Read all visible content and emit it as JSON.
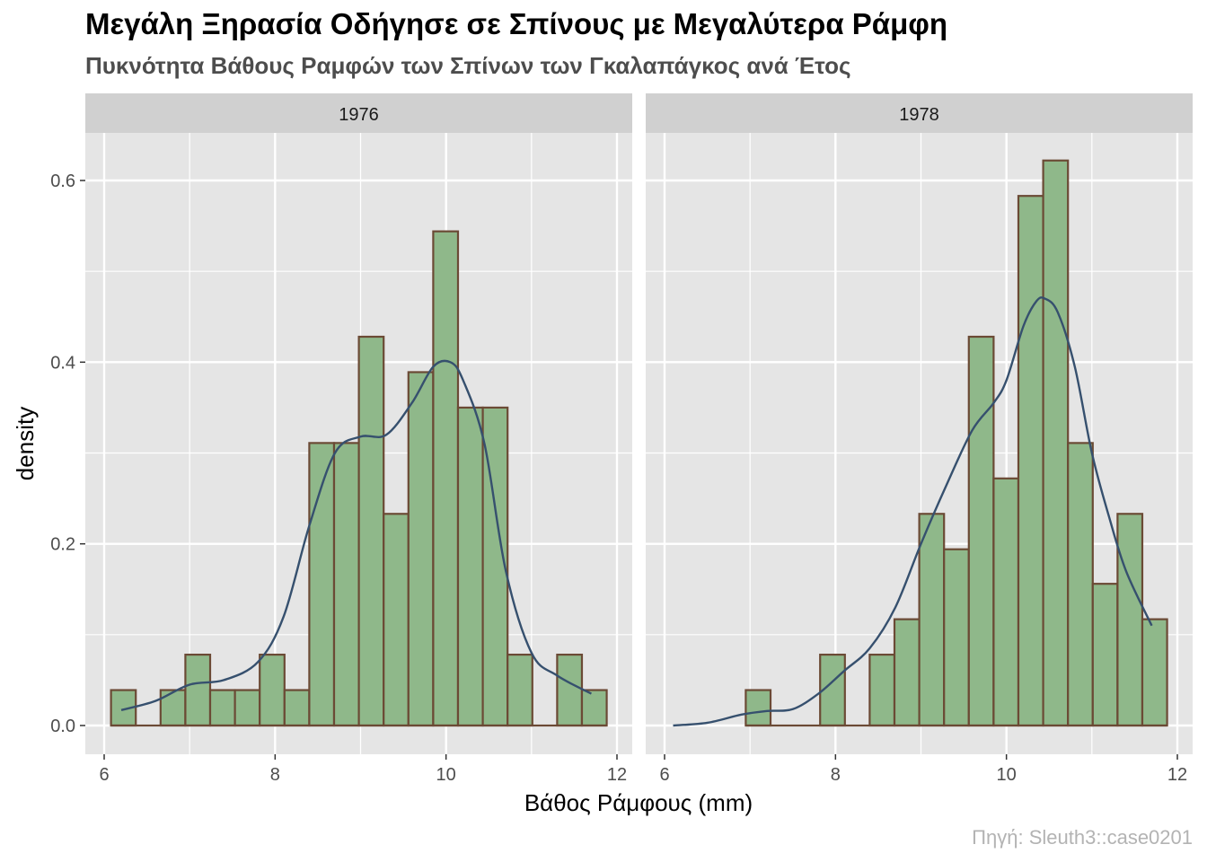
{
  "title": "Μεγάλη Ξηρασία Οδήγησε σε Σπίνους με Μεγαλύτερα Ράμφη",
  "subtitle": "Πυκνότητα Βάθους Ραμφών των Σπίνων των Γκαλαπάγκος ανά Έτος",
  "caption": "Πηγή: Sleuth3::case0201",
  "colors": {
    "bar_fill": "#8fb88a",
    "bar_stroke": "#6b4a35",
    "density_line": "#36506e",
    "panel_bg": "#e5e5e5",
    "strip_bg": "#d0d0d0",
    "grid": "#ffffff"
  },
  "chart_data": {
    "type": "histogram-facet",
    "xlabel": "Βάθος Ράμφους (mm)",
    "ylabel": "density",
    "xlim": [
      6,
      12
    ],
    "ylim": [
      0,
      0.6
    ],
    "x_ticks": [
      6,
      8,
      10,
      12
    ],
    "y_ticks": [
      0.0,
      0.2,
      0.4,
      0.6
    ],
    "y_tick_labels": [
      "0.0",
      "0.2",
      "0.4",
      "0.6"
    ],
    "grid": true,
    "panels": [
      {
        "label": "1976",
        "bins": [
          {
            "x0": 6.08,
            "x1": 6.37,
            "density": 0.039
          },
          {
            "x0": 6.66,
            "x1": 6.95,
            "density": 0.039
          },
          {
            "x0": 6.95,
            "x1": 7.24,
            "density": 0.078
          },
          {
            "x0": 7.24,
            "x1": 7.53,
            "density": 0.039
          },
          {
            "x0": 7.53,
            "x1": 7.82,
            "density": 0.039
          },
          {
            "x0": 7.82,
            "x1": 8.11,
            "density": 0.078
          },
          {
            "x0": 8.11,
            "x1": 8.4,
            "density": 0.039
          },
          {
            "x0": 8.4,
            "x1": 8.69,
            "density": 0.311
          },
          {
            "x0": 8.69,
            "x1": 8.98,
            "density": 0.311
          },
          {
            "x0": 8.98,
            "x1": 9.27,
            "density": 0.428
          },
          {
            "x0": 9.27,
            "x1": 9.56,
            "density": 0.233
          },
          {
            "x0": 9.56,
            "x1": 9.85,
            "density": 0.389
          },
          {
            "x0": 9.85,
            "x1": 10.14,
            "density": 0.544
          },
          {
            "x0": 10.14,
            "x1": 10.43,
            "density": 0.35
          },
          {
            "x0": 10.43,
            "x1": 10.72,
            "density": 0.35
          },
          {
            "x0": 10.72,
            "x1": 11.01,
            "density": 0.078
          },
          {
            "x0": 11.3,
            "x1": 11.59,
            "density": 0.078
          },
          {
            "x0": 11.59,
            "x1": 11.88,
            "density": 0.039
          }
        ],
        "density_curve": {
          "x": [
            6.2,
            6.6,
            7.0,
            7.4,
            7.8,
            8.1,
            8.4,
            8.7,
            9.0,
            9.3,
            9.6,
            9.85,
            10.05,
            10.2,
            10.45,
            10.7,
            11.0,
            11.3,
            11.7
          ],
          "y": [
            0.017,
            0.027,
            0.045,
            0.05,
            0.07,
            0.12,
            0.22,
            0.3,
            0.318,
            0.32,
            0.355,
            0.395,
            0.4,
            0.38,
            0.31,
            0.17,
            0.08,
            0.055,
            0.035
          ]
        }
      },
      {
        "label": "1978",
        "bins": [
          {
            "x0": 6.95,
            "x1": 7.24,
            "density": 0.039
          },
          {
            "x0": 7.82,
            "x1": 8.11,
            "density": 0.078
          },
          {
            "x0": 8.4,
            "x1": 8.69,
            "density": 0.078
          },
          {
            "x0": 8.69,
            "x1": 8.98,
            "density": 0.117
          },
          {
            "x0": 8.98,
            "x1": 9.27,
            "density": 0.233
          },
          {
            "x0": 9.27,
            "x1": 9.56,
            "density": 0.194
          },
          {
            "x0": 9.56,
            "x1": 9.85,
            "density": 0.428
          },
          {
            "x0": 9.85,
            "x1": 10.14,
            "density": 0.272
          },
          {
            "x0": 10.14,
            "x1": 10.43,
            "density": 0.583
          },
          {
            "x0": 10.43,
            "x1": 10.72,
            "density": 0.622
          },
          {
            "x0": 10.72,
            "x1": 11.01,
            "density": 0.311
          },
          {
            "x0": 11.01,
            "x1": 11.3,
            "density": 0.156
          },
          {
            "x0": 11.3,
            "x1": 11.59,
            "density": 0.233
          },
          {
            "x0": 11.59,
            "x1": 11.88,
            "density": 0.117
          }
        ],
        "density_curve": {
          "x": [
            6.1,
            6.5,
            6.9,
            7.2,
            7.5,
            7.8,
            8.1,
            8.4,
            8.7,
            9.0,
            9.3,
            9.6,
            9.85,
            10.0,
            10.2,
            10.35,
            10.45,
            10.6,
            10.8,
            11.0,
            11.2,
            11.4,
            11.7
          ],
          "y": [
            0.0,
            0.003,
            0.012,
            0.016,
            0.018,
            0.035,
            0.06,
            0.085,
            0.13,
            0.2,
            0.265,
            0.325,
            0.355,
            0.38,
            0.44,
            0.467,
            0.47,
            0.455,
            0.395,
            0.3,
            0.23,
            0.17,
            0.11
          ]
        }
      }
    ]
  }
}
